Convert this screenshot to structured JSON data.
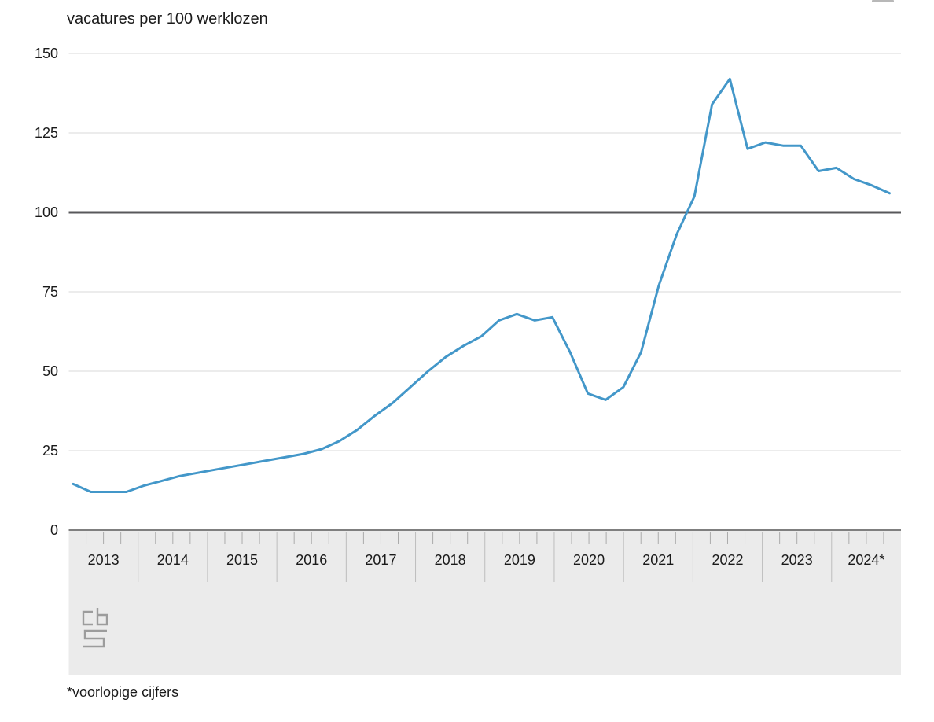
{
  "page": {
    "title": "vacatures per 100 werklozen",
    "footnote": "*voorlopige cijfers"
  },
  "icons": {
    "menu": "hamburger-menu-icon",
    "logo": "cbs-logo"
  },
  "chart_data": {
    "type": "line",
    "title": "vacatures per 100 werklozen",
    "ylabel": "vacatures per 100 werklozen",
    "ylim": [
      0,
      150
    ],
    "yticks": [
      0,
      25,
      50,
      75,
      100,
      125,
      150
    ],
    "grid": true,
    "legend": false,
    "reference_line_y": 100,
    "reference_line_color": "#58585B",
    "line_color": "#4397C9",
    "axis_band_color": "#EBEBEB",
    "gridline_color": "#D9D9D9",
    "x_year_labels": [
      "2013",
      "2014",
      "2015",
      "2016",
      "2017",
      "2018",
      "2019",
      "2020",
      "2021",
      "2022",
      "2023",
      "2024*"
    ],
    "points_per_year": 4,
    "series": [
      {
        "name": "vacatures per 100 werklozen",
        "start": "2013 Q1",
        "end": "2024 Q3",
        "values": [
          14.5,
          12,
          12,
          12,
          14,
          15.5,
          17,
          18,
          19,
          20,
          21,
          22,
          23,
          24,
          25.5,
          28,
          31.5,
          36,
          40,
          45,
          50,
          54.5,
          58,
          61,
          66,
          68,
          66,
          67,
          56,
          43,
          41,
          45,
          56,
          77,
          93,
          105,
          134,
          142,
          120,
          122,
          121,
          121,
          113,
          114,
          110.5,
          108.5,
          106
        ]
      }
    ],
    "footnote": "*voorlopige cijfers"
  }
}
